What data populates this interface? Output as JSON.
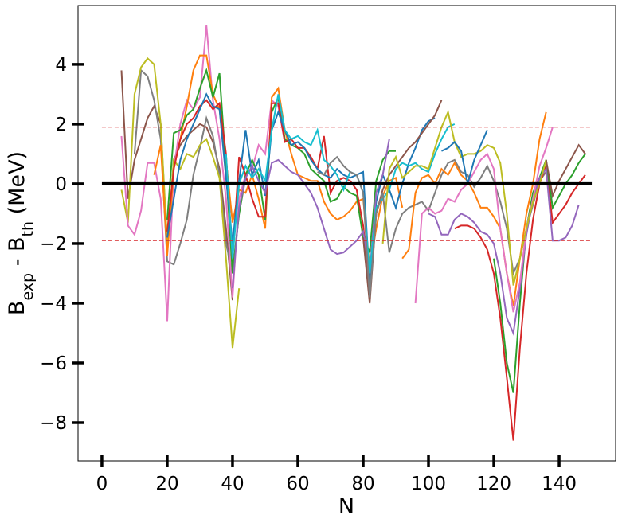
{
  "chart_data": {
    "type": "line",
    "xlabel": "N",
    "ylabel_parts": [
      "B",
      "exp",
      " - B",
      "th",
      " (MeV)"
    ],
    "xlim": [
      -7.3,
      157.3
    ],
    "ylim": [
      -9.28,
      5.97
    ],
    "xticks": [
      0,
      20,
      40,
      60,
      80,
      100,
      120,
      140
    ],
    "yticks": [
      {
        "value": -8,
        "label": "−8"
      },
      {
        "value": -6,
        "label": "−6"
      },
      {
        "value": -4,
        "label": "−4"
      },
      {
        "value": -2,
        "label": "−2"
      },
      0,
      2,
      4
    ],
    "hlines": [
      {
        "y": 0,
        "x": [
          0,
          150
        ],
        "color": "#000000",
        "style": "solid"
      },
      {
        "y": 1.9,
        "x": [
          0,
          150
        ],
        "color": "#d62728",
        "style": "dashed"
      },
      {
        "y": -1.9,
        "x": [
          0,
          150
        ],
        "color": "#d62728",
        "style": "dashed"
      }
    ],
    "series": [
      {
        "color": "#8c564b",
        "x": [
          6,
          8,
          10,
          12,
          14,
          16,
          18,
          20,
          22,
          24,
          26,
          28,
          30,
          32,
          34,
          36,
          38,
          40
        ],
        "values": [
          3.8,
          -0.5,
          0.8,
          1.5,
          2.2,
          2.6,
          2.0,
          -2.2,
          0.8,
          1.3,
          1.6,
          1.8,
          2.0,
          1.9,
          1.4,
          0.5,
          -1.5,
          -3.9
        ]
      },
      {
        "color": "#7f7f7f",
        "x": [
          10,
          12,
          14,
          16,
          18,
          20,
          22,
          24,
          26,
          28,
          30,
          32,
          34,
          36,
          38,
          40,
          42,
          44
        ],
        "values": [
          1.0,
          3.8,
          3.6,
          2.8,
          1.5,
          -2.6,
          -2.7,
          -2.0,
          -1.2,
          0.3,
          1.2,
          2.2,
          1.6,
          0.3,
          -2.0,
          -3.0,
          -1.0,
          0.2
        ]
      },
      {
        "color": "#bcbd22",
        "x": [
          6,
          8,
          10,
          12,
          14,
          16,
          18,
          20,
          22,
          24,
          26,
          28,
          30,
          32,
          34,
          36,
          38,
          40,
          42
        ],
        "values": [
          -0.2,
          -1.3,
          3.0,
          3.9,
          4.2,
          4.0,
          2.0,
          -2.0,
          0.8,
          0.5,
          1.0,
          0.9,
          1.3,
          1.5,
          0.9,
          0.2,
          -2.5,
          -5.5,
          -3.5
        ]
      },
      {
        "color": "#e377c2",
        "x": [
          6,
          8,
          10,
          12,
          14,
          16,
          18,
          20,
          22,
          24,
          26,
          28,
          30,
          32,
          34,
          36,
          38,
          40,
          42,
          44,
          46,
          48,
          50,
          52,
          54,
          56
        ],
        "values": [
          1.6,
          -1.4,
          -1.7,
          -0.9,
          0.7,
          0.7,
          -0.5,
          -4.6,
          0.5,
          2.0,
          2.8,
          2.5,
          2.9,
          5.3,
          2.8,
          1.5,
          -0.5,
          -3.8,
          -0.5,
          0.3,
          0.5,
          1.3,
          1.0,
          2.8,
          2.6,
          1.4
        ]
      },
      {
        "color": "#ff7f0e",
        "x": [
          16,
          18,
          20,
          22,
          24,
          26,
          28,
          30,
          32,
          34,
          36,
          38,
          40,
          42,
          44,
          46,
          48,
          50,
          52,
          54,
          56,
          58,
          60,
          62,
          64,
          66,
          68,
          70,
          72,
          74,
          76,
          78,
          80,
          82,
          84,
          86,
          88,
          90,
          92
        ],
        "values": [
          0.3,
          1.3,
          -2.4,
          0.5,
          1.5,
          2.6,
          3.8,
          4.3,
          4.3,
          3.0,
          2.5,
          0.8,
          -1.3,
          -0.2,
          -0.3,
          0.3,
          -0.5,
          -1.5,
          2.9,
          3.2,
          1.8,
          1.0,
          0.3,
          0.2,
          0.1,
          0.1,
          -0.6,
          -1.0,
          -1.2,
          -1.1,
          -0.9,
          -0.6,
          -0.5,
          -2.8,
          -1.5,
          -0.4,
          0.1,
          0.2,
          -0.8
        ]
      },
      {
        "color": "#2ca02c",
        "x": [
          20,
          22,
          24,
          26,
          28,
          30,
          32,
          34,
          36,
          38,
          40,
          42,
          44,
          46,
          48,
          50,
          52,
          54,
          56,
          58,
          60,
          62,
          64,
          66,
          68,
          70,
          72,
          74,
          76,
          78,
          80,
          82,
          84,
          86,
          88,
          90
        ],
        "values": [
          -1.2,
          1.7,
          1.8,
          2.3,
          2.5,
          3.2,
          3.8,
          2.9,
          3.7,
          0.5,
          -3.0,
          -1.0,
          0.3,
          0.8,
          0.3,
          -1.2,
          2.4,
          2.9,
          1.5,
          1.3,
          1.2,
          1.0,
          0.5,
          0.3,
          0.1,
          -0.6,
          -0.5,
          -0.1,
          -0.3,
          -0.4,
          -1.8,
          -2.3,
          0.1,
          0.8,
          1.1,
          1.1
        ]
      },
      {
        "color": "#d62728",
        "x": [
          20,
          22,
          24,
          26,
          28,
          30,
          32,
          34,
          36,
          38,
          40,
          42,
          44,
          46,
          48,
          50,
          52,
          54,
          56,
          58,
          60,
          62,
          64,
          66,
          68,
          70,
          72,
          74,
          76,
          78,
          80,
          82
        ],
        "values": [
          -1.6,
          0.5,
          1.5,
          2.0,
          2.2,
          2.6,
          2.8,
          2.5,
          2.7,
          1.0,
          -2.5,
          0.9,
          0.3,
          -0.5,
          -1.1,
          -1.1,
          2.7,
          2.7,
          1.4,
          1.5,
          1.2,
          1.2,
          0.9,
          0.5,
          1.6,
          -0.3,
          0.1,
          0.2,
          0.1,
          -0.2,
          -1.4,
          -3.5
        ]
      },
      {
        "color": "#1f77b4",
        "x": [
          20,
          22,
          24,
          26,
          28,
          30,
          32,
          34,
          36,
          38,
          40,
          42,
          44,
          46,
          48,
          50,
          52,
          54,
          56,
          58,
          60,
          62,
          64,
          66,
          68,
          70,
          72,
          74,
          76,
          78,
          80,
          82,
          84,
          86,
          88,
          90,
          92,
          94,
          96,
          98,
          100,
          102
        ],
        "values": [
          -1.8,
          -0.5,
          0.8,
          1.5,
          2.0,
          2.5,
          3.0,
          2.6,
          2.5,
          0.2,
          -2.0,
          0.1,
          1.8,
          0.3,
          0.8,
          -0.4,
          1.8,
          2.4,
          1.8,
          1.3,
          1.4,
          1.2,
          0.8,
          0.5,
          0.3,
          0.2,
          0.5,
          0.3,
          0.2,
          0.3,
          0.4,
          -3.3,
          -0.6,
          0.3,
          -0.2,
          -0.8,
          0.0,
          0.7,
          1.2,
          1.8,
          2.1,
          2.2
        ]
      },
      {
        "color": "#9467bd",
        "x": [
          40,
          42,
          44,
          46,
          48,
          50,
          52,
          54,
          56,
          58,
          60,
          62,
          64,
          66,
          68,
          70,
          72,
          74,
          76,
          78,
          80,
          82,
          84,
          86,
          88
        ],
        "values": [
          -3.5,
          -0.8,
          0.2,
          0.6,
          0.1,
          -0.3,
          0.7,
          0.8,
          0.6,
          0.4,
          0.3,
          0.0,
          -0.3,
          -0.8,
          -1.5,
          -2.2,
          -2.35,
          -2.3,
          -2.1,
          -1.9,
          -1.6,
          -3.0,
          -0.3,
          0.3,
          1.5
        ]
      },
      {
        "color": "#17becf",
        "x": [
          38,
          40,
          42,
          44,
          46,
          48,
          50,
          52,
          54,
          56,
          58,
          60,
          62,
          64,
          66,
          68,
          70,
          72,
          74,
          76,
          78,
          80,
          82,
          84,
          86,
          88,
          90,
          92,
          94,
          96,
          98,
          100,
          102,
          104,
          106,
          108
        ],
        "values": [
          1.0,
          -2.5,
          0.0,
          0.6,
          0.2,
          0.5,
          0.1,
          1.8,
          3.0,
          1.8,
          1.5,
          1.6,
          1.4,
          1.3,
          1.8,
          0.8,
          0.6,
          0.3,
          -0.2,
          0.4,
          0.3,
          -0.3,
          -3.0,
          -0.8,
          -0.5,
          -0.2,
          0.5,
          0.7,
          0.6,
          0.7,
          0.5,
          0.4,
          1.0,
          1.5,
          1.9,
          2.0
        ]
      },
      {
        "color": "#8c564b",
        "x": [
          80,
          82,
          84,
          86,
          88,
          90,
          92,
          94,
          96,
          98,
          100,
          102,
          104
        ],
        "values": [
          -1.8,
          -4.0,
          -1.0,
          -0.2,
          0.3,
          0.6,
          0.9,
          1.2,
          1.4,
          1.7,
          2.0,
          2.3,
          2.8
        ]
      },
      {
        "color": "#7f7f7f",
        "x": [
          66,
          68,
          70,
          72,
          74,
          76,
          78,
          80,
          82,
          84,
          86,
          88,
          90,
          92,
          94,
          96,
          98,
          100,
          102,
          104,
          106,
          108,
          110,
          112,
          114,
          116,
          118,
          120,
          122,
          124,
          126,
          128,
          130,
          132,
          134,
          136
        ],
        "values": [
          0.4,
          0.3,
          0.7,
          0.9,
          0.6,
          0.4,
          0.3,
          -0.3,
          -3.8,
          -1.0,
          -0.3,
          -2.3,
          -1.5,
          -1.0,
          -0.8,
          -0.7,
          -0.6,
          -0.9,
          -0.3,
          0.3,
          0.7,
          0.8,
          0.4,
          0.3,
          -0.1,
          0.2,
          0.6,
          0.1,
          -0.6,
          -1.5,
          -3.0,
          -2.5,
          -1.5,
          -0.7,
          0.1,
          0.4
        ]
      },
      {
        "color": "#d62728",
        "x": [
          108,
          110,
          112,
          114,
          116,
          118,
          120,
          122,
          124,
          126,
          128,
          130,
          132,
          134,
          136,
          138,
          140,
          142,
          144,
          146,
          148
        ],
        "values": [
          -1.5,
          -1.4,
          -1.4,
          -1.5,
          -1.8,
          -2.2,
          -3.0,
          -4.5,
          -6.5,
          -8.6,
          -5.5,
          -3.0,
          -1.2,
          0.0,
          0.6,
          -1.3,
          -1.0,
          -0.7,
          -0.3,
          0.0,
          0.3
        ]
      },
      {
        "color": "#2ca02c",
        "x": [
          120,
          122,
          124,
          126,
          128,
          130,
          132,
          134,
          136,
          138,
          140,
          142,
          144,
          146,
          148
        ],
        "values": [
          -2.5,
          -4.0,
          -6.0,
          -7.0,
          -4.0,
          -1.5,
          -0.3,
          0.2,
          0.8,
          -0.8,
          -0.4,
          0.0,
          0.3,
          0.7,
          1.0
        ]
      },
      {
        "color": "#9467bd",
        "x": [
          100,
          102,
          104,
          106,
          108,
          110,
          112,
          114,
          116,
          118,
          120,
          122,
          124,
          126,
          128,
          130,
          132,
          134,
          136,
          138,
          140,
          142,
          144,
          146
        ],
        "values": [
          -1.0,
          -1.1,
          -1.7,
          -1.7,
          -1.2,
          -1.0,
          -1.1,
          -1.3,
          -1.6,
          -1.7,
          -2.0,
          -3.0,
          -4.5,
          -5.0,
          -3.5,
          -1.7,
          -0.5,
          0.2,
          0.5,
          -1.9,
          -1.9,
          -1.8,
          -1.4,
          -0.7
        ]
      },
      {
        "color": "#ff7f0e",
        "x": [
          92,
          94,
          96,
          98,
          100,
          102,
          104,
          106,
          108,
          110,
          112,
          114,
          116,
          118,
          120,
          122,
          124,
          126,
          128,
          130,
          132,
          134,
          136
        ],
        "values": [
          -2.5,
          -2.2,
          -0.3,
          0.2,
          0.3,
          0.0,
          0.5,
          0.3,
          0.7,
          0.3,
          0.1,
          -0.3,
          -0.8,
          -0.8,
          -1.1,
          -1.5,
          -3.0,
          -4.1,
          -2.5,
          -1.0,
          0.0,
          1.5,
          2.4
        ]
      },
      {
        "color": "#e377c2",
        "x": [
          96,
          98,
          100,
          102,
          104,
          106,
          108,
          110,
          112,
          114,
          116,
          118,
          120,
          122,
          124,
          126,
          128,
          130,
          132,
          134,
          136,
          138
        ],
        "values": [
          -4.0,
          -1.0,
          -0.8,
          -1.0,
          -0.9,
          -0.5,
          -0.6,
          -0.2,
          0.0,
          0.4,
          0.8,
          1.0,
          0.5,
          -1.5,
          -3.0,
          -4.3,
          -3.3,
          -1.5,
          -0.5,
          0.6,
          1.2,
          1.9
        ]
      },
      {
        "color": "#bcbd22",
        "x": [
          86,
          88,
          90,
          92,
          94,
          96,
          98,
          100,
          102,
          104,
          106,
          108,
          110,
          112,
          114,
          116,
          118,
          120,
          122,
          124,
          126,
          128,
          130,
          132,
          134,
          136
        ],
        "values": [
          -2.0,
          0.5,
          0.9,
          0.2,
          0.4,
          0.6,
          0.6,
          0.5,
          1.2,
          1.9,
          2.4,
          1.4,
          0.9,
          1.0,
          1.0,
          1.1,
          1.3,
          1.2,
          0.7,
          -1.0,
          -3.4,
          -2.5,
          -1.5,
          -0.6,
          0.0,
          0.8
        ]
      },
      {
        "color": "#1f77b4",
        "x": [
          104,
          106,
          108,
          110,
          112,
          114,
          116,
          118
        ],
        "values": [
          1.1,
          1.2,
          1.4,
          1.1,
          0.0,
          0.8,
          1.3,
          1.8
        ]
      },
      {
        "color": "#8c564b",
        "x": [
          136,
          138,
          140,
          142,
          144,
          146,
          148
        ],
        "values": [
          0.8,
          -0.4,
          0.1,
          0.5,
          0.9,
          1.3,
          1.0
        ]
      }
    ]
  }
}
